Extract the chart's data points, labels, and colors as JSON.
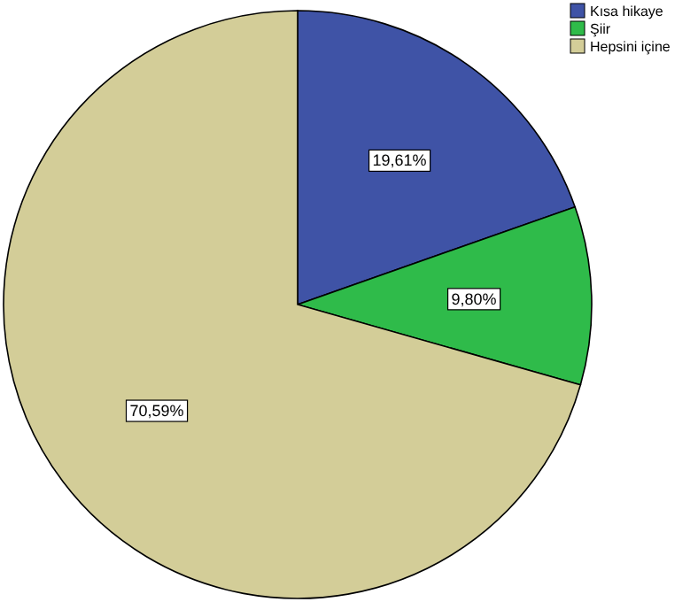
{
  "chart_data": {
    "type": "pie",
    "categories": [
      "Kısa hikaye",
      "Şiir",
      "Hepsini içine"
    ],
    "values": [
      19.61,
      9.8,
      70.59
    ],
    "value_labels": [
      "19,61%",
      "9,80%",
      "70,59%"
    ],
    "colors": [
      "#3f53a6",
      "#2fbb4a",
      "#d3cd98"
    ],
    "legend": "top right"
  }
}
